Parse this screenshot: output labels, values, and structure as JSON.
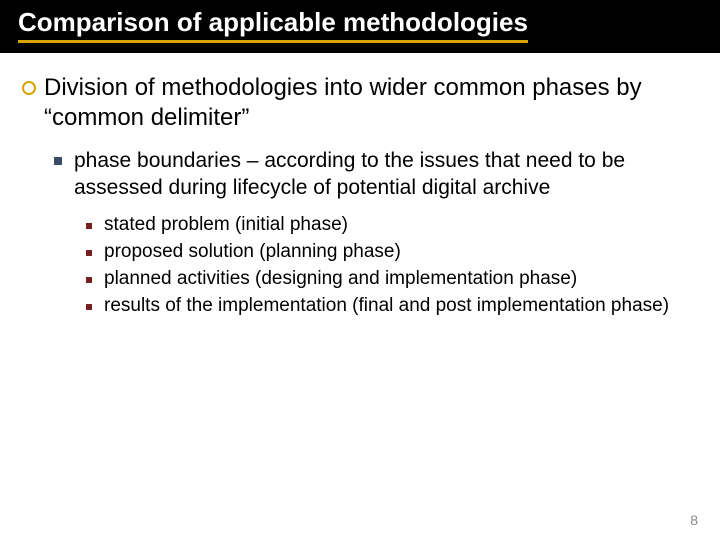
{
  "colors": {
    "title_bg": "#000000",
    "title_text": "#ffffff",
    "accent_underline": "#d9a300",
    "l1_bullet_border": "#d9a300",
    "l2_bullet_fill": "#3b4a6b",
    "l3_bullet_fill": "#7a1f1f",
    "body_text": "#000000",
    "page_num": "#8a8a8a",
    "page_bg": "#ffffff"
  },
  "typography": {
    "title_fontsize": 26,
    "title_fontweight": "bold",
    "l1_fontsize": 24,
    "l2_fontsize": 21,
    "l3_fontsize": 19,
    "font_family": "Verdana"
  },
  "title": "Comparison of applicable methodologies",
  "l1": {
    "text": "Division of methodologies into wider common phases by “common delimiter”"
  },
  "l2": {
    "text": "phase boundaries – according to the issues that need to be assessed during lifecycle of potential digital archive"
  },
  "l3_items": [
    "stated problem (initial phase)",
    "proposed solution (planning phase)",
    "planned activities (designing and implementation phase)",
    "results of the implementation (final and post implementation phase)"
  ],
  "page_number": "8"
}
